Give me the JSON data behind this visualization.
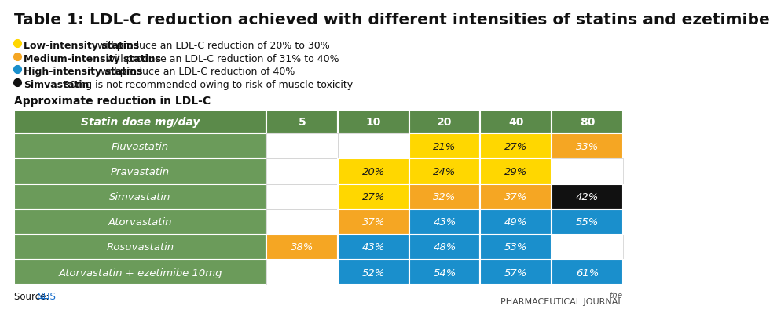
{
  "title": "Table 1: LDL-C reduction achieved with different intensities of statins and ezetimibe",
  "legend_items": [
    {
      "color": "#FFD700",
      "bold": "Low-intensity statins",
      "text": " will produce an LDL-C reduction of 20% to 30%"
    },
    {
      "color": "#F5A623",
      "bold": "Medium-intensity statins",
      "text": " will produce an LDL-C reduction of 31% to 40%"
    },
    {
      "color": "#1A8FCC",
      "bold": "High-intensity statins",
      "text": " will produce an LDL-C reduction of 40%"
    },
    {
      "color": "#111111",
      "bold": "Simvastatin",
      "text": " 80mg is not recommended owing to risk of muscle toxicity"
    }
  ],
  "subtitle": "Approximate reduction in LDL-C",
  "header_bg": "#5B8A4A",
  "row_bg": "#6B9B5A",
  "col_header": "Statin dose mg/day",
  "doses": [
    "5",
    "10",
    "20",
    "40",
    "80"
  ],
  "rows": [
    {
      "drug": "Fluvastatin",
      "values": [
        {
          "val": null,
          "color": null
        },
        {
          "val": null,
          "color": null
        },
        {
          "val": "21%",
          "color": "#FFD700"
        },
        {
          "val": "27%",
          "color": "#FFD700"
        },
        {
          "val": "33%",
          "color": "#F5A623"
        }
      ]
    },
    {
      "drug": "Pravastatin",
      "values": [
        {
          "val": null,
          "color": null
        },
        {
          "val": "20%",
          "color": "#FFD700"
        },
        {
          "val": "24%",
          "color": "#FFD700"
        },
        {
          "val": "29%",
          "color": "#FFD700"
        },
        {
          "val": null,
          "color": null
        }
      ]
    },
    {
      "drug": "Simvastatin",
      "values": [
        {
          "val": null,
          "color": null
        },
        {
          "val": "27%",
          "color": "#FFD700"
        },
        {
          "val": "32%",
          "color": "#F5A623"
        },
        {
          "val": "37%",
          "color": "#F5A623"
        },
        {
          "val": "42%",
          "color": "#111111"
        }
      ]
    },
    {
      "drug": "Atorvastatin",
      "values": [
        {
          "val": null,
          "color": null
        },
        {
          "val": "37%",
          "color": "#F5A623"
        },
        {
          "val": "43%",
          "color": "#1A8FCC"
        },
        {
          "val": "49%",
          "color": "#1A8FCC"
        },
        {
          "val": "55%",
          "color": "#1A8FCC"
        }
      ]
    },
    {
      "drug": "Rosuvastatin",
      "values": [
        {
          "val": "38%",
          "color": "#F5A623"
        },
        {
          "val": "43%",
          "color": "#1A8FCC"
        },
        {
          "val": "48%",
          "color": "#1A8FCC"
        },
        {
          "val": "53%",
          "color": "#1A8FCC"
        },
        {
          "val": null,
          "color": null
        }
      ]
    },
    {
      "drug": "Atorvastatin + ezetimibe 10mg",
      "values": [
        {
          "val": null,
          "color": null
        },
        {
          "val": "52%",
          "color": "#1A8FCC"
        },
        {
          "val": "54%",
          "color": "#1A8FCC"
        },
        {
          "val": "57%",
          "color": "#1A8FCC"
        },
        {
          "val": "61%",
          "color": "#1A8FCC"
        }
      ]
    }
  ],
  "source_text": "Source: ",
  "source_link": "NHS",
  "bg_color": "#FFFFFF",
  "empty_cell_color": "#FFFFFF",
  "border_color": "#FFFFFF",
  "yellow_text": "#1A1A1A",
  "white_text": "#FFFFFF"
}
